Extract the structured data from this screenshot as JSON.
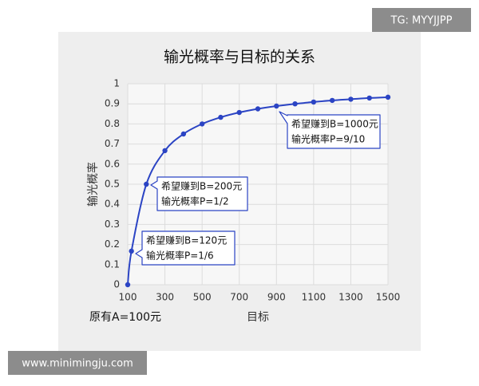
{
  "chart_data": {
    "type": "line",
    "title": "输光概率与目标的关系",
    "x_label": "目标",
    "y_label": "输光概率",
    "x": [
      100,
      120,
      200,
      300,
      400,
      500,
      600,
      700,
      800,
      900,
      1000,
      1100,
      1200,
      1300,
      1400,
      1500
    ],
    "series": [
      {
        "name": "输光概率",
        "color": "#2b44c4",
        "values": [
          0,
          0.167,
          0.5,
          0.667,
          0.75,
          0.8,
          0.833,
          0.857,
          0.875,
          0.889,
          0.9,
          0.909,
          0.917,
          0.923,
          0.929,
          0.933
        ]
      }
    ],
    "xlim": [
      100,
      1500
    ],
    "xticks": [
      100,
      300,
      500,
      700,
      900,
      1100,
      1300,
      1500
    ],
    "ylim": [
      0,
      1
    ],
    "yticks": [
      0,
      0.1,
      0.2,
      0.3,
      0.4,
      0.5,
      0.6,
      0.7,
      0.8,
      0.9,
      1
    ],
    "grid": true,
    "annotations": [
      {
        "lines": [
          "希望赚到B=1000元",
          "输光概率P=9/10"
        ]
      },
      {
        "lines": [
          "希望赚到B=200元",
          "输光概率P=1/2"
        ]
      },
      {
        "lines": [
          "希望赚到B=120元",
          "输光概率P=1/6"
        ]
      }
    ],
    "note": "原有A=100元"
  },
  "watermarks": [
    "TG: MYYJJPP",
    "www.minimingju.com"
  ]
}
